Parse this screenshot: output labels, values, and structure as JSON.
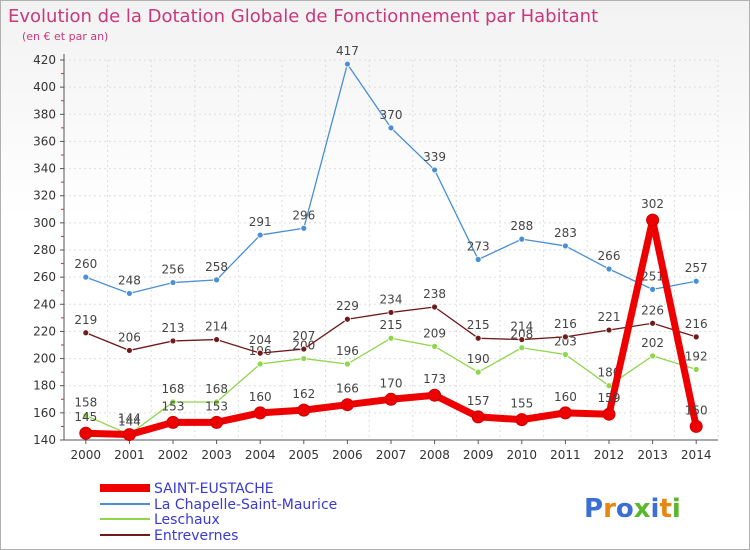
{
  "chart_data": {
    "type": "line",
    "title": "Evolution de la Dotation Globale de Fonctionnement par Habitant",
    "subtitle": "(en € et par an)",
    "xlabel": "",
    "ylabel": "",
    "x": [
      "2000",
      "2001",
      "2002",
      "2003",
      "2004",
      "2005",
      "2006",
      "2007",
      "2008",
      "2009",
      "2010",
      "2011",
      "2012",
      "2013",
      "2014"
    ],
    "ylim": [
      140,
      420
    ],
    "yticks": [
      140,
      160,
      180,
      200,
      220,
      240,
      260,
      280,
      300,
      320,
      340,
      360,
      380,
      400,
      420
    ],
    "legend_position": "bottom-left",
    "series": [
      {
        "name": "SAINT-EUSTACHE",
        "color": "#ee0000",
        "values": [
          145,
          144,
          153,
          153,
          160,
          162,
          166,
          170,
          173,
          157,
          155,
          160,
          159,
          302,
          150
        ]
      },
      {
        "name": "La Chapelle-Saint-Maurice",
        "color": "#4a8fd4",
        "values": [
          260,
          248,
          256,
          258,
          291,
          296,
          417,
          370,
          339,
          273,
          288,
          283,
          266,
          251,
          257
        ]
      },
      {
        "name": "Leschaux",
        "color": "#8ed64a",
        "values": [
          158,
          144,
          168,
          168,
          196,
          200,
          196,
          215,
          209,
          190,
          208,
          203,
          180,
          202,
          192
        ]
      },
      {
        "name": "Entrevernes",
        "color": "#701a1a",
        "values": [
          219,
          206,
          213,
          214,
          204,
          207,
          229,
          234,
          238,
          215,
          214,
          216,
          221,
          226,
          216
        ]
      }
    ]
  },
  "logo": {
    "text": "Proxiti"
  }
}
